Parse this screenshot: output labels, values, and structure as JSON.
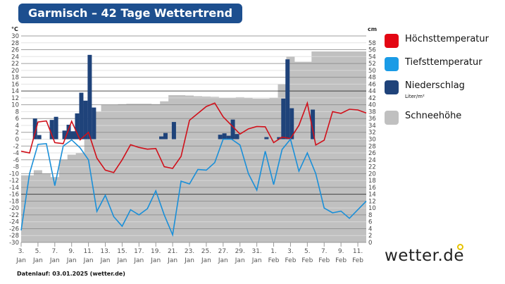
{
  "title": "Garmisch – 42 Tage Wettertrend",
  "footer": "Datenlauf: 03.01.2025 (wetter.de)",
  "logo": "wetter.de",
  "legend": [
    {
      "label": "Höchsttemperatur",
      "color": "#e30613"
    },
    {
      "label": "Tiefsttemperatur",
      "color": "#1a9be6"
    },
    {
      "label": "Niederschlag",
      "sub": "Liter/m²",
      "color": "#1f437a"
    },
    {
      "label": "Schneehöhe",
      "color": "#c0c0c0"
    }
  ],
  "chart_data": {
    "type": "line",
    "left_axis": {
      "unit": "°C",
      "range": [
        -30,
        30
      ],
      "step": 2
    },
    "right_axis": {
      "unit": "cm",
      "range": [
        0,
        60
      ],
      "step": 2
    },
    "x_ticks": [
      [
        "3.",
        "Jan"
      ],
      [
        "5.",
        "Jan"
      ],
      [
        "7.",
        "Jan"
      ],
      [
        "9.",
        "Jan"
      ],
      [
        "11.",
        "Jan"
      ],
      [
        "13.",
        "Jan"
      ],
      [
        "15.",
        "Jan"
      ],
      [
        "17.",
        "Jan"
      ],
      [
        "19.",
        "Jan"
      ],
      [
        "21.",
        "Jan"
      ],
      [
        "23.",
        "Jan"
      ],
      [
        "25.",
        "Jan"
      ],
      [
        "27.",
        "Jan"
      ],
      [
        "29.",
        "Jan"
      ],
      [
        "31.",
        "Jan"
      ],
      [
        "1.",
        "Feb"
      ],
      [
        "3.",
        "Feb"
      ],
      [
        "5.",
        "Feb"
      ],
      [
        "7.",
        "Feb"
      ],
      [
        "9.",
        "Feb"
      ],
      [
        "11.",
        "Feb"
      ]
    ],
    "series": [
      {
        "name": "Höchsttemperatur",
        "color": "#d0101a",
        "values": [
          -3.5,
          -4,
          5,
          5.3,
          -1,
          -1.3,
          5.2,
          -0.2,
          2,
          -5.5,
          -9,
          -9.7,
          -6,
          -1.6,
          -2.4,
          -2.9,
          -2.7,
          -8,
          -8.5,
          -5,
          5.5,
          7.5,
          9.5,
          10.5,
          6.5,
          4,
          1.5,
          3,
          3.7,
          3.6,
          -1,
          0.6,
          0.2,
          4,
          10.5,
          -1.7,
          -0.3,
          8,
          7.5,
          8.7,
          8.5,
          7.6
        ]
      },
      {
        "name": "Tiefsttemperatur",
        "color": "#1a8fd8",
        "values": [
          -26.5,
          -10,
          -1.5,
          -1.3,
          -13.5,
          -2,
          -0.2,
          -2.5,
          -6,
          -21,
          -16.3,
          -22.5,
          -25.3,
          -20.5,
          -22,
          -20.2,
          -15,
          -22,
          -27.8,
          -12.2,
          -13,
          -8.8,
          -9,
          -6.8,
          0,
          0,
          -1.7,
          -10,
          -14.8,
          -3.5,
          -13.2,
          -3,
          0,
          -9.3,
          -4,
          -10,
          -20,
          -21.4,
          -20.9,
          -23,
          -20.5,
          -18
        ]
      },
      {
        "name": "Niederschlag",
        "color": "#1f437a",
        "half_day_values": [
          0,
          0,
          0,
          6,
          1.2,
          0,
          0,
          5.6,
          6.5,
          0,
          2.5,
          4.2,
          2.3,
          7.5,
          13.5,
          11.2,
          24.5,
          9.2,
          0,
          0,
          0,
          0,
          0,
          0,
          0,
          0,
          0,
          0,
          0,
          0,
          0,
          0,
          0,
          0.8,
          1.8,
          0,
          5,
          0,
          0,
          0,
          0,
          0,
          0,
          0,
          0,
          0,
          0,
          1.3,
          1.7,
          1,
          5.7,
          1.5,
          0,
          0,
          0,
          0,
          0,
          0,
          0.6,
          0,
          0,
          0.6,
          11.8,
          23.2,
          9,
          0,
          0,
          0,
          0,
          8.6,
          0,
          0,
          0,
          0,
          0,
          0,
          0,
          0,
          0,
          0,
          0,
          0,
          0,
          0
        ]
      },
      {
        "name": "Schneehöhe",
        "color": "#c0c0c0",
        "values": [
          19.5,
          19.5,
          21,
          20,
          19,
          24,
          25.5,
          26,
          30,
          38,
          40,
          40,
          40.2,
          40.3,
          40.3,
          40.3,
          40.2,
          41,
          42.8,
          42.8,
          42.7,
          42.5,
          42.4,
          42.3,
          42,
          42,
          42.2,
          42,
          41.8,
          41.8,
          42,
          46,
          54,
          52.5,
          52.5,
          55.5,
          55.5,
          55.5,
          55.5,
          55.5,
          55.5,
          55.5
        ]
      }
    ]
  }
}
